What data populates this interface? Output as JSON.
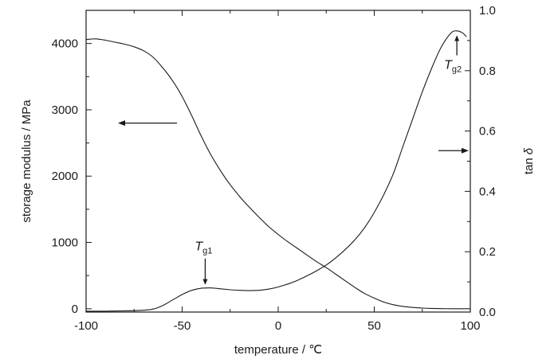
{
  "chart_data": {
    "type": "line",
    "title": "",
    "xlabel": "temperature / ℃",
    "ylabel_left": "storage modulus / MPa",
    "ylabel_right_prefix": "tan",
    "ylabel_right_symbol": "δ",
    "xlim": [
      -100,
      100
    ],
    "ylim_left": [
      -50,
      4500
    ],
    "ylim_right": [
      0.0,
      1.0
    ],
    "x_ticks": [
      -100,
      -50,
      0,
      50,
      100
    ],
    "x_tick_labels": [
      "-100",
      "-50",
      "0",
      "50",
      "100"
    ],
    "y_left_ticks": [
      0,
      1000,
      2000,
      3000,
      4000
    ],
    "y_left_tick_labels": [
      "0",
      "1000",
      "2000",
      "3000",
      "4000"
    ],
    "y_right_ticks": [
      0.0,
      0.2,
      0.4,
      0.6,
      0.8,
      1.0
    ],
    "y_right_tick_labels": [
      "0.0",
      "0.2",
      "0.4",
      "0.6",
      "0.8",
      "1.0"
    ],
    "grid": false,
    "legend": "none",
    "series": [
      {
        "axis": "left",
        "x": [
          -100,
          -95,
          -90,
          -85,
          -80,
          -75,
          -70,
          -65,
          -60,
          -55,
          -50,
          -45,
          -40,
          -35,
          -30,
          -25,
          -20,
          -15,
          -10,
          -5,
          0,
          5,
          10,
          15,
          20,
          25,
          30,
          35,
          40,
          45,
          50,
          55,
          60,
          65,
          70,
          75,
          80,
          85,
          90,
          95,
          100
        ],
        "y": [
          4060,
          4070,
          4050,
          4020,
          3990,
          3950,
          3890,
          3790,
          3630,
          3440,
          3200,
          2910,
          2600,
          2320,
          2080,
          1870,
          1690,
          1530,
          1380,
          1240,
          1120,
          1010,
          910,
          810,
          710,
          620,
          520,
          420,
          320,
          230,
          160,
          100,
          60,
          35,
          20,
          10,
          5,
          2,
          0,
          0,
          0
        ]
      },
      {
        "axis": "right",
        "x": [
          -100,
          -90,
          -80,
          -70,
          -65,
          -60,
          -55,
          -50,
          -45,
          -40,
          -35,
          -30,
          -25,
          -20,
          -15,
          -10,
          -5,
          0,
          5,
          10,
          15,
          20,
          25,
          30,
          35,
          40,
          45,
          50,
          55,
          60,
          65,
          70,
          75,
          80,
          85,
          90,
          93,
          96,
          98
        ],
        "y": [
          0.003,
          0.003,
          0.004,
          0.006,
          0.01,
          0.022,
          0.04,
          0.058,
          0.072,
          0.079,
          0.08,
          0.077,
          0.074,
          0.072,
          0.071,
          0.072,
          0.076,
          0.083,
          0.093,
          0.105,
          0.12,
          0.137,
          0.156,
          0.18,
          0.208,
          0.24,
          0.28,
          0.33,
          0.39,
          0.46,
          0.55,
          0.64,
          0.73,
          0.81,
          0.88,
          0.925,
          0.932,
          0.925,
          0.912
        ]
      }
    ],
    "annotations": [
      {
        "main": "T",
        "sub": "g1",
        "x": -38,
        "y_right": 0.08,
        "arrow": "down"
      },
      {
        "main": "T",
        "sub": "g2",
        "x": 93,
        "y_right": 0.93,
        "arrow": "up"
      }
    ],
    "axis_arrows": [
      {
        "points_to": "left",
        "y_left": 2800
      },
      {
        "points_to": "right",
        "y_right": 0.535
      }
    ]
  }
}
